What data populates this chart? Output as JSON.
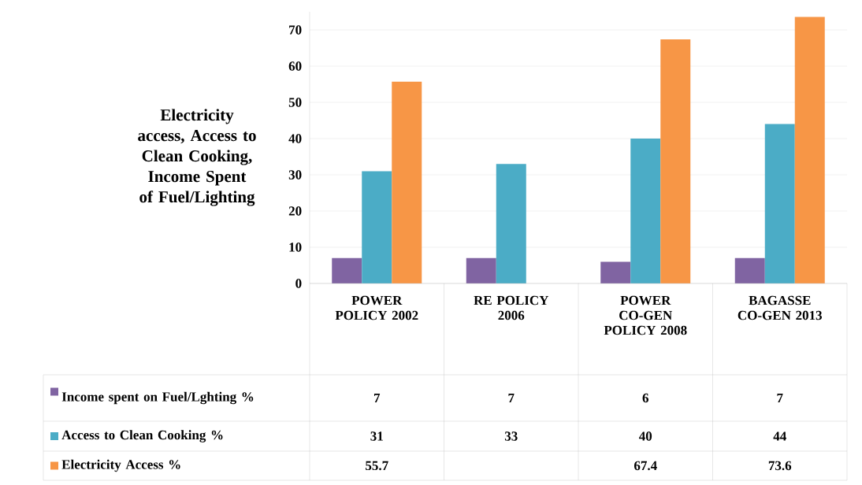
{
  "chart_data": {
    "type": "bar",
    "ylabel": "Electricity access, Access to Clean Cooking, Income Spent of Fuel/Lighting",
    "categories": [
      "POWER POLICY 2002",
      "RE POLICY 2006",
      "POWER CO-GEN POLICY 2008",
      "BAGASSE CO-GEN 2013"
    ],
    "series": [
      {
        "name": "Income spent on Fuel/Lghting %",
        "color": "#8064a2",
        "values": [
          7,
          7,
          6,
          7
        ]
      },
      {
        "name": "Access to Clean Cooking %",
        "color": "#4bacc6",
        "values": [
          31,
          33,
          40,
          44
        ]
      },
      {
        "name": "Electricity Access %",
        "color": "#f79646",
        "values": [
          55.7,
          null,
          67.4,
          73.6
        ]
      }
    ],
    "ylim": [
      0,
      75
    ],
    "yticks": [
      0,
      10,
      20,
      30,
      40,
      50,
      60,
      70
    ],
    "grid": "y",
    "legend": "bottom",
    "data_labels": true
  }
}
